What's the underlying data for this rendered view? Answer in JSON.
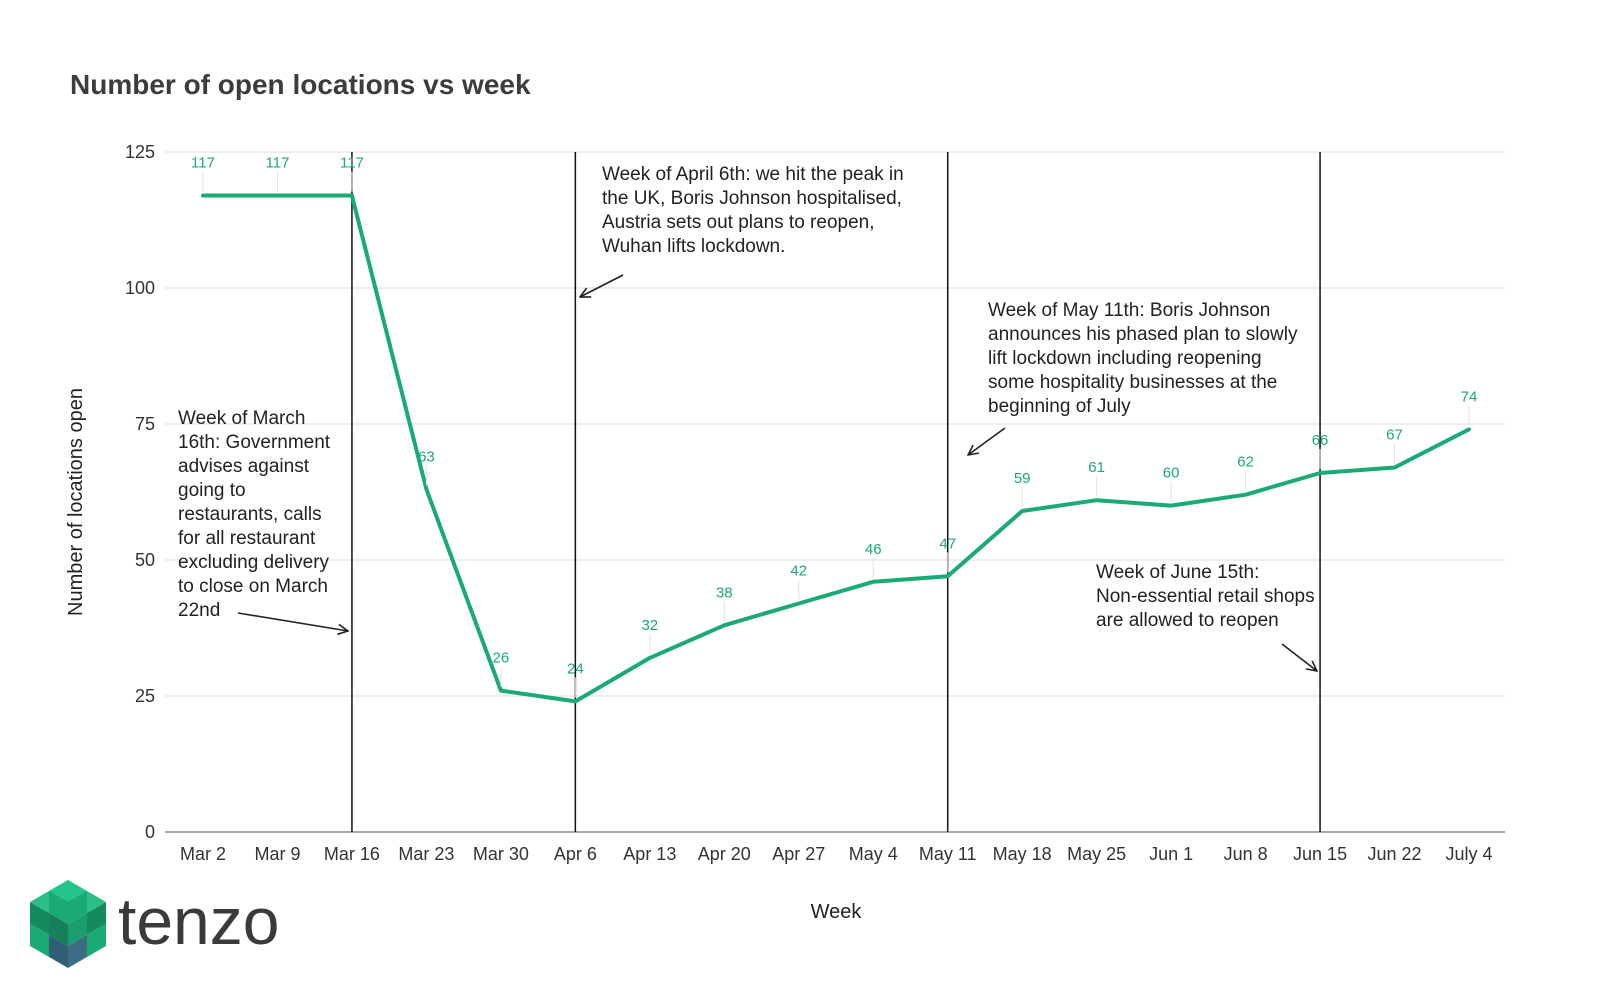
{
  "brand": {
    "name": "tenzo",
    "accent": "#1aaa73"
  },
  "chart_data": {
    "type": "line",
    "title": "Number of open locations vs week",
    "xlabel": "Week",
    "ylabel": "Number of locations open",
    "ylim": [
      0,
      125
    ],
    "yticks": [
      0,
      25,
      50,
      75,
      100,
      125
    ],
    "grid": true,
    "categories": [
      "Mar 2",
      "Mar 9",
      "Mar 16",
      "Mar 23",
      "Mar 30",
      "Apr 6",
      "Apr 13",
      "Apr 20",
      "Apr 27",
      "May 4",
      "May 11",
      "May 18",
      "May 25",
      "Jun 1",
      "Jun 8",
      "Jun 15",
      "Jun 22",
      "July 4"
    ],
    "series": [
      {
        "values": [
          117,
          117,
          117,
          63,
          26,
          24,
          32,
          38,
          42,
          46,
          47,
          59,
          61,
          60,
          62,
          66,
          67,
          74
        ],
        "color": "#1aaa73"
      }
    ],
    "annotations": [
      {
        "category": "Mar 16",
        "lines": [
          "Week of March",
          "16th: Government",
          "advises against",
          "going to",
          "restaurants, calls",
          "for all restaurant",
          "excluding delivery",
          "to close on March",
          "22nd"
        ]
      },
      {
        "category": "Apr 6",
        "lines": [
          "Week of April 6th: we hit the peak in",
          "the UK, Boris Johnson hospitalised,",
          "Austria sets out plans to reopen,",
          "Wuhan lifts lockdown."
        ]
      },
      {
        "category": "May 11",
        "lines": [
          "Week of May 11th: Boris Johnson",
          "announces his phased plan to slowly",
          "lift lockdown including reopening",
          "some hospitality businesses at the",
          "beginning of July"
        ]
      },
      {
        "category": "Jun 15",
        "lines": [
          "Week of June 15th:",
          "Non-essential retail shops",
          "are allowed to reopen"
        ]
      }
    ]
  }
}
